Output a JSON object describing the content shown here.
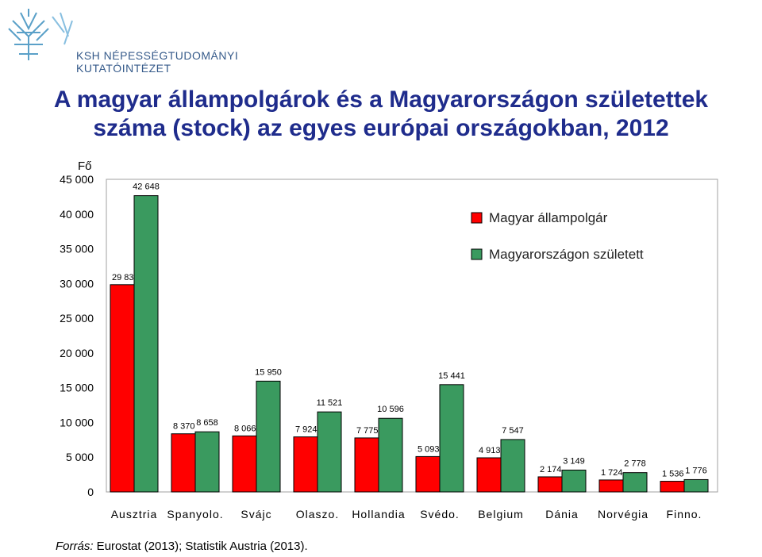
{
  "logo": {
    "line1": "KSH NÉPESSÉGTUDOMÁNYI",
    "line2": "KUTATÓINTÉZET"
  },
  "title": {
    "line1": "A magyar állampolgárok és a Magyarországon születettek",
    "line2": "száma (stock) az egyes európai országokban, 2012"
  },
  "source": {
    "prefix": "Forrás:",
    "text": " Eurostat (2013); Statistik Austria (2013)."
  },
  "colors": {
    "series1": "#ff0000",
    "series2": "#3a9a5f",
    "title": "#1f2c8c"
  },
  "chart_data": {
    "type": "bar",
    "ylabel": "Fő",
    "ylim": [
      0,
      45000
    ],
    "yticks": [
      "0",
      "5 000",
      "10 000",
      "15 000",
      "20 000",
      "25 000",
      "30 000",
      "35 000",
      "40 000",
      "45 000"
    ],
    "ytick_values": [
      0,
      5000,
      10000,
      15000,
      20000,
      25000,
      30000,
      35000,
      40000,
      45000
    ],
    "grid": false,
    "legend_position": "top-right",
    "categories": [
      "Ausztria",
      "Spanyolo.",
      "Svájc",
      "Olaszo.",
      "Hollandia",
      "Svédo.",
      "Belgium",
      "Dánia",
      "Norvégia",
      "Finno."
    ],
    "series": [
      {
        "name": "Magyar állampolgár",
        "values": [
          29832,
          8370,
          8066,
          7924,
          7775,
          5093,
          4913,
          2174,
          1724,
          1536
        ],
        "labels": [
          "29 832",
          "8 370",
          "8 066",
          "7 924",
          "7 775",
          "5 093",
          "4 913",
          "2 174",
          "1 724",
          "1 536"
        ]
      },
      {
        "name": "Magyarországon született",
        "values": [
          42648,
          8658,
          15950,
          11521,
          10596,
          15441,
          7547,
          3149,
          2778,
          1776
        ],
        "labels": [
          "42 648",
          "8 658",
          "15 950",
          "11 521",
          "10 596",
          "15 441",
          "7 547",
          "3 149",
          "2 778",
          "1 776"
        ]
      }
    ]
  }
}
